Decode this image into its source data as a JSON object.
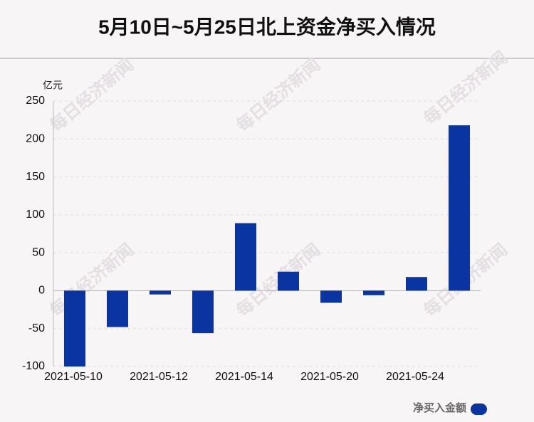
{
  "chart_data": {
    "type": "bar",
    "title": "5月10日~5月25日北上资金净买入情况",
    "y_label": "亿元",
    "watermark": "每日经济新闻",
    "categories": [
      "2021-05-10",
      null,
      "2021-05-12",
      null,
      "2021-05-14",
      null,
      "2021-05-20",
      null,
      "2021-05-24",
      null
    ],
    "series": [
      {
        "name": "净买入金额",
        "color": "#0a35a0",
        "values": [
          -100,
          -48,
          -5,
          -56,
          89,
          25,
          -16,
          -6,
          18,
          218
        ]
      }
    ],
    "ylim": [
      -100,
      250
    ],
    "yticks": [
      -100,
      -50,
      0,
      50,
      100,
      150,
      200,
      250
    ],
    "grid": true,
    "legend": "bottom-right"
  }
}
